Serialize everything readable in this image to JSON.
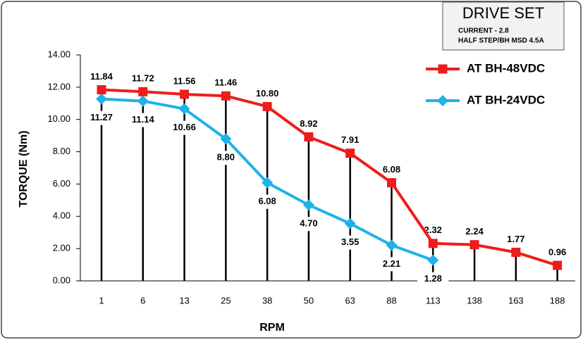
{
  "chart_data": {
    "type": "line",
    "annotation": {
      "title": "DRIVE SET",
      "lines": [
        "CURRENT - 2.8",
        "HALF STEP/BH MSD 4.5A"
      ]
    },
    "x_label": "RPM",
    "y_label": "TORQUE (Nm)",
    "categories": [
      "1",
      "6",
      "13",
      "25",
      "38",
      "50",
      "63",
      "88",
      "113",
      "138",
      "163",
      "188"
    ],
    "series": [
      {
        "name": "AT BH-48VDC",
        "color": "#ee1c1c",
        "marker": "square",
        "values": [
          11.84,
          11.72,
          11.56,
          11.46,
          10.8,
          8.92,
          7.91,
          6.08,
          2.32,
          2.24,
          1.77,
          0.96
        ],
        "value_labels": [
          "11.84",
          "11.72",
          "11.56",
          "11.46",
          "10.80",
          "8.92",
          "7.91",
          "6.08",
          "2.32",
          "2.24",
          "1.77",
          "0.96"
        ]
      },
      {
        "name": "AT BH-24VDC",
        "color": "#1fb2e8",
        "marker": "diamond",
        "values": [
          11.27,
          11.14,
          10.66,
          8.8,
          6.08,
          4.7,
          3.55,
          2.21,
          1.28,
          null,
          null,
          null
        ],
        "value_labels": [
          "11.27",
          "11.14",
          "10.66",
          "8.80",
          "6.08",
          "4.70",
          "3.55",
          "2.21",
          "1.28",
          null,
          null,
          null
        ]
      }
    ],
    "ylim": [
      0,
      14
    ],
    "yticks": [
      {
        "value": 0,
        "label": "0.00"
      },
      {
        "value": 2,
        "label": "2.00"
      },
      {
        "value": 4,
        "label": "4.00"
      },
      {
        "value": 6,
        "label": "6.00"
      },
      {
        "value": 8,
        "label": "8.00"
      },
      {
        "value": 10,
        "label": "10.00"
      },
      {
        "value": 12,
        "label": "12.00"
      },
      {
        "value": 14,
        "label": "14.00"
      }
    ],
    "drop_lines": true
  }
}
